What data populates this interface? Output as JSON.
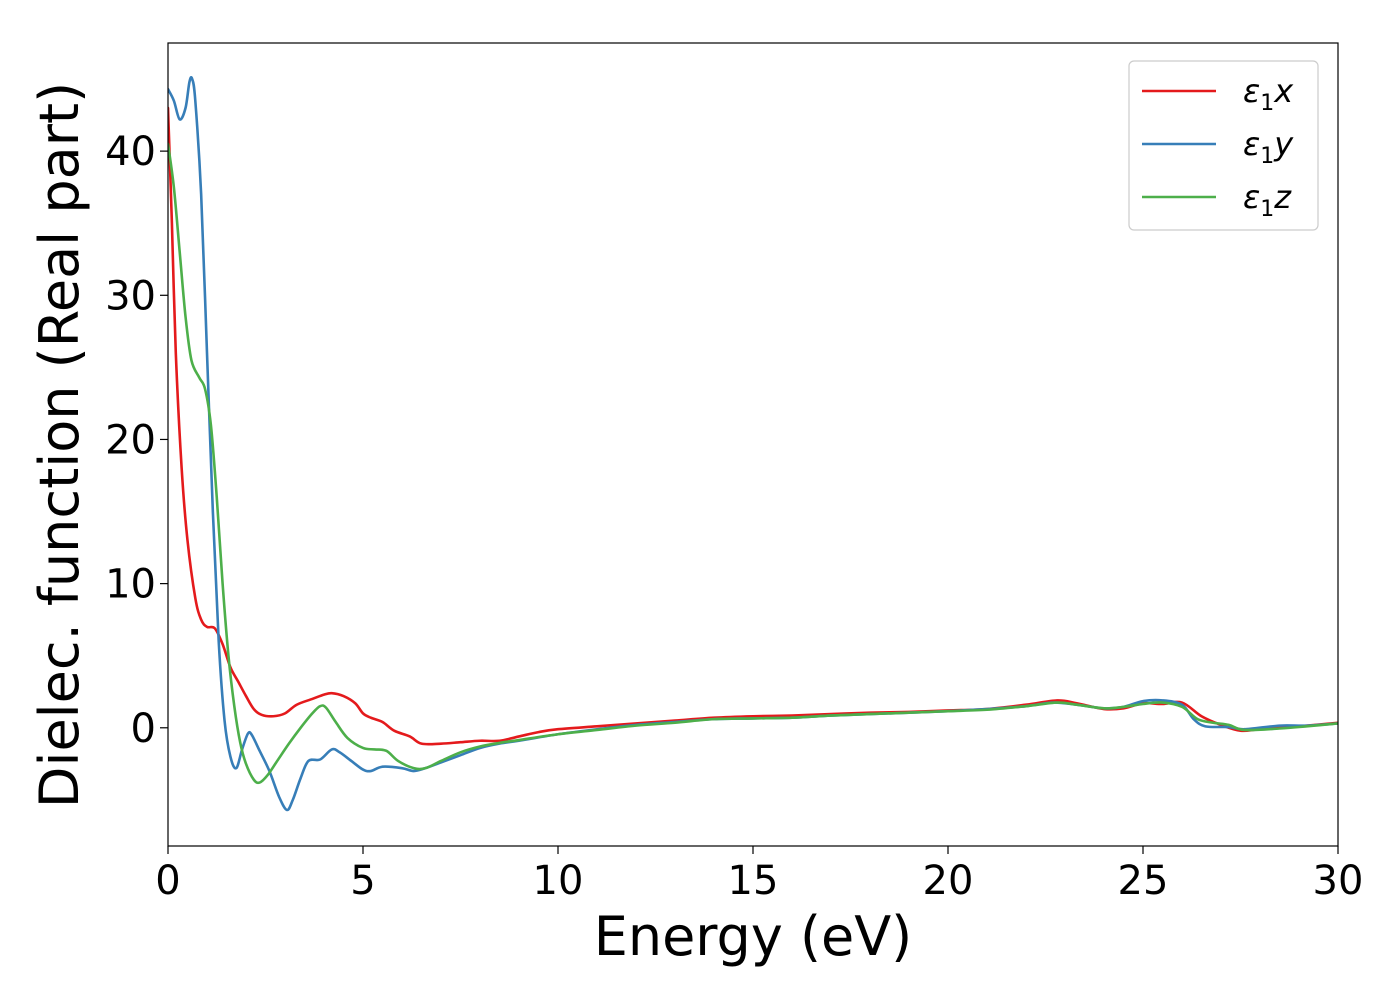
{
  "chart_data": {
    "type": "line",
    "xlabel": "Energy (eV)",
    "ylabel": "Dielec. function (Real part)",
    "xlim": [
      0,
      30
    ],
    "ylim": [
      -8.2,
      47.5
    ],
    "xticks": [
      0,
      5,
      10,
      15,
      20,
      25,
      30
    ],
    "yticks": [
      0,
      10,
      20,
      30,
      40
    ],
    "grid": false,
    "legend_position": "top-right",
    "series": [
      {
        "name": "ε1x",
        "legend_base": "ε",
        "legend_sub": "1",
        "legend_suffix": "x",
        "color": "#e41a1c",
        "points": [
          [
            0,
            43
          ],
          [
            0.1,
            35
          ],
          [
            0.2,
            26
          ],
          [
            0.35,
            18
          ],
          [
            0.5,
            13
          ],
          [
            0.7,
            9
          ],
          [
            0.85,
            7.5
          ],
          [
            1.0,
            7.0
          ],
          [
            1.2,
            6.9
          ],
          [
            1.4,
            5.8
          ],
          [
            1.6,
            4.2
          ],
          [
            1.8,
            3.2
          ],
          [
            2.0,
            2.2
          ],
          [
            2.2,
            1.3
          ],
          [
            2.4,
            0.9
          ],
          [
            2.7,
            0.8
          ],
          [
            3.0,
            1.0
          ],
          [
            3.3,
            1.6
          ],
          [
            3.7,
            2.0
          ],
          [
            4.0,
            2.3
          ],
          [
            4.2,
            2.4
          ],
          [
            4.5,
            2.2
          ],
          [
            4.8,
            1.7
          ],
          [
            5.0,
            1.0
          ],
          [
            5.2,
            0.7
          ],
          [
            5.5,
            0.4
          ],
          [
            5.8,
            -0.2
          ],
          [
            6.2,
            -0.6
          ],
          [
            6.5,
            -1.1
          ],
          [
            7.0,
            -1.1
          ],
          [
            7.5,
            -1.0
          ],
          [
            8.0,
            -0.9
          ],
          [
            8.5,
            -0.9
          ],
          [
            9.0,
            -0.6
          ],
          [
            9.5,
            -0.3
          ],
          [
            10,
            -0.1
          ],
          [
            11,
            0.1
          ],
          [
            12,
            0.3
          ],
          [
            13,
            0.5
          ],
          [
            14,
            0.7
          ],
          [
            15,
            0.8
          ],
          [
            16,
            0.85
          ],
          [
            17,
            0.95
          ],
          [
            18,
            1.05
          ],
          [
            19,
            1.1
          ],
          [
            20,
            1.2
          ],
          [
            21,
            1.3
          ],
          [
            22,
            1.6
          ],
          [
            22.8,
            1.9
          ],
          [
            23.3,
            1.7
          ],
          [
            24,
            1.3
          ],
          [
            24.5,
            1.35
          ],
          [
            25,
            1.7
          ],
          [
            25.5,
            1.65
          ],
          [
            26,
            1.75
          ],
          [
            26.5,
            0.8
          ],
          [
            27,
            0.2
          ],
          [
            27.5,
            -0.2
          ],
          [
            28,
            -0.1
          ],
          [
            29,
            0.1
          ],
          [
            30,
            0.35
          ]
        ]
      },
      {
        "name": "ε1y",
        "legend_base": "ε",
        "legend_sub": "1",
        "legend_suffix": "y",
        "color": "#377eb8",
        "points": [
          [
            0,
            44.3
          ],
          [
            0.15,
            43.5
          ],
          [
            0.3,
            42.2
          ],
          [
            0.45,
            43
          ],
          [
            0.55,
            44.8
          ],
          [
            0.62,
            45
          ],
          [
            0.7,
            43.5
          ],
          [
            0.85,
            37
          ],
          [
            1.0,
            26
          ],
          [
            1.15,
            15
          ],
          [
            1.3,
            6
          ],
          [
            1.45,
            0.5
          ],
          [
            1.6,
            -2.0
          ],
          [
            1.75,
            -2.8
          ],
          [
            1.9,
            -1.5
          ],
          [
            2.05,
            -0.4
          ],
          [
            2.15,
            -0.5
          ],
          [
            2.35,
            -1.6
          ],
          [
            2.6,
            -3.0
          ],
          [
            2.85,
            -4.8
          ],
          [
            3.05,
            -5.7
          ],
          [
            3.2,
            -5.0
          ],
          [
            3.4,
            -3.5
          ],
          [
            3.6,
            -2.3
          ],
          [
            3.9,
            -2.2
          ],
          [
            4.2,
            -1.5
          ],
          [
            4.4,
            -1.7
          ],
          [
            4.7,
            -2.3
          ],
          [
            5.0,
            -2.9
          ],
          [
            5.2,
            -3.0
          ],
          [
            5.5,
            -2.7
          ],
          [
            6.0,
            -2.8
          ],
          [
            6.3,
            -3.0
          ],
          [
            6.6,
            -2.8
          ],
          [
            7.0,
            -2.4
          ],
          [
            7.5,
            -1.9
          ],
          [
            8.0,
            -1.4
          ],
          [
            8.5,
            -1.1
          ],
          [
            9.0,
            -0.9
          ],
          [
            10,
            -0.45
          ],
          [
            11,
            -0.1
          ],
          [
            12,
            0.2
          ],
          [
            13,
            0.4
          ],
          [
            14,
            0.6
          ],
          [
            15,
            0.65
          ],
          [
            16,
            0.7
          ],
          [
            17,
            0.85
          ],
          [
            18,
            0.95
          ],
          [
            19,
            1.05
          ],
          [
            20,
            1.15
          ],
          [
            21,
            1.3
          ],
          [
            22,
            1.5
          ],
          [
            22.7,
            1.75
          ],
          [
            23.3,
            1.6
          ],
          [
            24,
            1.35
          ],
          [
            24.5,
            1.45
          ],
          [
            25,
            1.85
          ],
          [
            25.5,
            1.9
          ],
          [
            26,
            1.6
          ],
          [
            26.3,
            0.6
          ],
          [
            26.6,
            0.1
          ],
          [
            27.2,
            0.05
          ],
          [
            27.6,
            -0.1
          ],
          [
            28.5,
            0.15
          ],
          [
            29.2,
            0.15
          ],
          [
            30,
            0.3
          ]
        ]
      },
      {
        "name": "ε1z",
        "legend_base": "ε",
        "legend_sub": "1",
        "legend_suffix": "z",
        "color": "#4daf4a",
        "points": [
          [
            0,
            40.5
          ],
          [
            0.15,
            37.5
          ],
          [
            0.3,
            33
          ],
          [
            0.45,
            28.5
          ],
          [
            0.6,
            25.5
          ],
          [
            0.8,
            24.3
          ],
          [
            0.95,
            23.5
          ],
          [
            1.1,
            21
          ],
          [
            1.25,
            16
          ],
          [
            1.4,
            10
          ],
          [
            1.55,
            5
          ],
          [
            1.7,
            1.5
          ],
          [
            1.85,
            -1.0
          ],
          [
            2.0,
            -2.5
          ],
          [
            2.2,
            -3.6
          ],
          [
            2.35,
            -3.8
          ],
          [
            2.55,
            -3.3
          ],
          [
            2.8,
            -2.3
          ],
          [
            3.1,
            -1.1
          ],
          [
            3.4,
            0
          ],
          [
            3.7,
            1.0
          ],
          [
            3.9,
            1.5
          ],
          [
            4.05,
            1.4
          ],
          [
            4.3,
            0.4
          ],
          [
            4.6,
            -0.7
          ],
          [
            5.0,
            -1.4
          ],
          [
            5.3,
            -1.5
          ],
          [
            5.6,
            -1.6
          ],
          [
            5.9,
            -2.3
          ],
          [
            6.3,
            -2.8
          ],
          [
            6.6,
            -2.8
          ],
          [
            7.0,
            -2.3
          ],
          [
            7.5,
            -1.7
          ],
          [
            8.0,
            -1.3
          ],
          [
            8.5,
            -1.05
          ],
          [
            9.0,
            -0.85
          ],
          [
            10,
            -0.45
          ],
          [
            11,
            -0.15
          ],
          [
            12,
            0.15
          ],
          [
            13,
            0.35
          ],
          [
            14,
            0.6
          ],
          [
            15,
            0.65
          ],
          [
            16,
            0.7
          ],
          [
            17,
            0.85
          ],
          [
            18,
            0.95
          ],
          [
            19,
            1.05
          ],
          [
            20,
            1.15
          ],
          [
            21,
            1.25
          ],
          [
            22,
            1.5
          ],
          [
            22.8,
            1.75
          ],
          [
            23.3,
            1.6
          ],
          [
            24,
            1.35
          ],
          [
            24.5,
            1.45
          ],
          [
            25,
            1.65
          ],
          [
            25.5,
            1.75
          ],
          [
            26,
            1.45
          ],
          [
            26.4,
            0.6
          ],
          [
            26.8,
            0.35
          ],
          [
            27.2,
            0.2
          ],
          [
            27.6,
            -0.15
          ],
          [
            28.5,
            -0.05
          ],
          [
            29.2,
            0.1
          ],
          [
            30,
            0.3
          ]
        ]
      }
    ]
  }
}
